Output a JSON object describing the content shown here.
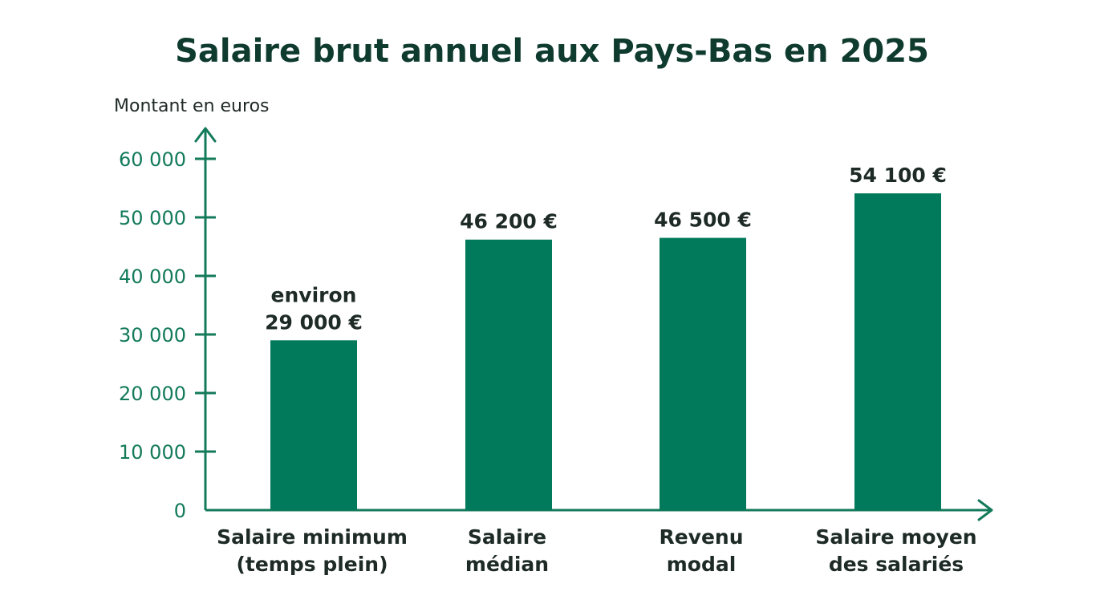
{
  "chart_data": {
    "type": "bar",
    "title": "Salaire brut annuel aux Pays-Bas en 2025",
    "ylabel": "Montant en euros",
    "xlabel": "",
    "ylim": [
      0,
      60000
    ],
    "yticks": [
      0,
      10000,
      20000,
      30000,
      40000,
      50000,
      60000
    ],
    "ytick_labels": [
      "0",
      "10 000",
      "20 000",
      "30 000",
      "40 000",
      "50 000",
      "60 000"
    ],
    "categories": [
      [
        "Salaire minimum",
        "(temps plein)"
      ],
      [
        "Salaire",
        "médian"
      ],
      [
        "Revenu",
        "modal"
      ],
      [
        "Salaire moyen",
        "des salariés"
      ]
    ],
    "values": [
      29000,
      46200,
      46500,
      54100
    ],
    "data_labels": [
      [
        "environ",
        "29 000 €"
      ],
      [
        "46 200 €"
      ],
      [
        "46 500 €"
      ],
      [
        "54 100 €"
      ]
    ],
    "bar_color": "#007a5a",
    "axis_color": "#137a5a",
    "grid": false,
    "legend": "none"
  }
}
